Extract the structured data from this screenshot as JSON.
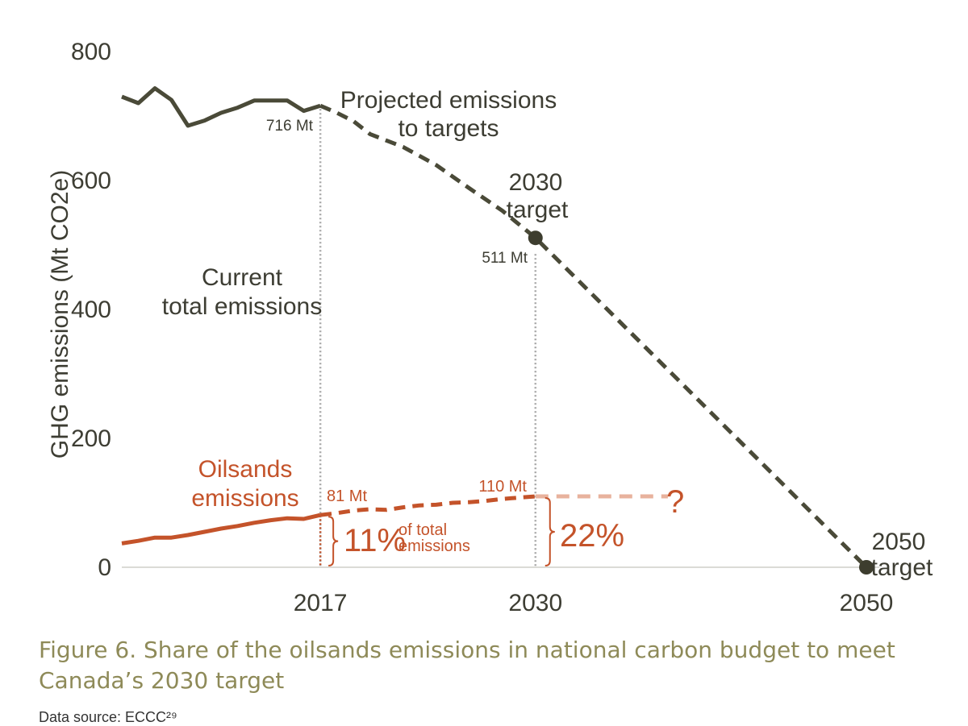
{
  "chart_data": {
    "type": "line",
    "title": "",
    "ylabel": "GHG emissions (Mt CO2e)",
    "xlabel": "",
    "ylim": [
      0,
      800
    ],
    "xlim": [
      2005,
      2050
    ],
    "y_ticks": [
      "0",
      "200",
      "400",
      "600",
      "800"
    ],
    "x_ticks": [
      {
        "label": "2017",
        "value": 2017
      },
      {
        "label": "2030",
        "value": 2030
      },
      {
        "label": "2050",
        "value": 2050
      }
    ],
    "series": [
      {
        "name": "Current total emissions",
        "style": "solid",
        "color": "#4a4a38",
        "points": [
          [
            2005,
            730
          ],
          [
            2006,
            720
          ],
          [
            2007,
            743
          ],
          [
            2008,
            725
          ],
          [
            2009,
            685
          ],
          [
            2010,
            693
          ],
          [
            2011,
            705
          ],
          [
            2012,
            713
          ],
          [
            2013,
            724
          ],
          [
            2014,
            724
          ],
          [
            2015,
            724
          ],
          [
            2016,
            708
          ],
          [
            2017,
            716
          ]
        ]
      },
      {
        "name": "Projected emissions to targets",
        "style": "dashed",
        "color": "#4a4a38",
        "points": [
          [
            2017,
            716
          ],
          [
            2018,
            705
          ],
          [
            2019,
            692
          ],
          [
            2020,
            672
          ],
          [
            2022,
            652
          ],
          [
            2024,
            624
          ],
          [
            2026,
            588
          ],
          [
            2028,
            553
          ],
          [
            2030,
            511
          ],
          [
            2050,
            0
          ]
        ]
      },
      {
        "name": "Oilsands emissions",
        "style": "solid",
        "color": "#c4532a",
        "points": [
          [
            2005,
            37
          ],
          [
            2006,
            41
          ],
          [
            2007,
            46
          ],
          [
            2008,
            46
          ],
          [
            2009,
            50
          ],
          [
            2010,
            55
          ],
          [
            2011,
            60
          ],
          [
            2012,
            64
          ],
          [
            2013,
            69
          ],
          [
            2014,
            73
          ],
          [
            2015,
            76
          ],
          [
            2016,
            75
          ],
          [
            2017,
            81
          ]
        ]
      },
      {
        "name": "Oilsands projected",
        "style": "dashed",
        "color": "#c4532a",
        "points": [
          [
            2017,
            81
          ],
          [
            2018,
            84
          ],
          [
            2019,
            88
          ],
          [
            2020,
            90
          ],
          [
            2021,
            89
          ],
          [
            2022,
            93
          ],
          [
            2023,
            96
          ],
          [
            2024,
            97
          ],
          [
            2025,
            100
          ],
          [
            2026,
            101
          ],
          [
            2027,
            103
          ],
          [
            2028,
            106
          ],
          [
            2029,
            108
          ],
          [
            2030,
            110
          ]
        ]
      },
      {
        "name": "Oilsands uncertain",
        "style": "dashed-light",
        "color": "#e8b29d",
        "points": [
          [
            2030,
            110
          ],
          [
            2038,
            110
          ]
        ]
      }
    ],
    "markers": [
      {
        "name": "2030 target",
        "x": 2030,
        "y": 511
      },
      {
        "name": "2050 target",
        "x": 2050,
        "y": 0
      }
    ],
    "annotations": {
      "projected_line1": "Projected emissions",
      "projected_line2": "to targets",
      "current_line1": "Current",
      "current_line2": "total emissions",
      "oilsands_line1": "Oilsands",
      "oilsands_line2": "emissions",
      "target2030_line1": "2030",
      "target2030_line2": "target",
      "target2050_line1": "2050",
      "target2050_line2": "target",
      "val_716": "716 Mt",
      "val_511": "511 Mt",
      "val_81": "81 Mt",
      "val_110": "110 Mt",
      "pct_2017": "11%",
      "pct_2017_note1": "of total",
      "pct_2017_note2": "emissions",
      "pct_2030": "22%",
      "question": "?"
    }
  },
  "caption": {
    "line1": "Figure 6. Share of the oilsands emissions in national carbon budget to meet",
    "line2": "Canada’s 2030 target"
  },
  "source_text": "Data source: ECCC²⁹"
}
